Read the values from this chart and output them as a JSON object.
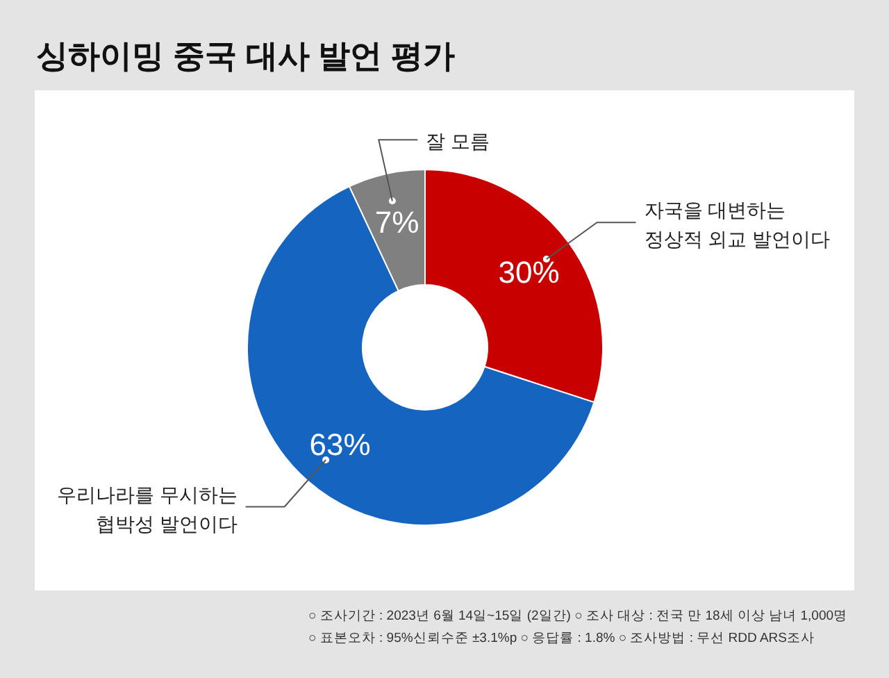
{
  "chart_data": {
    "type": "donut",
    "title": "싱하이밍 중국 대사 발언 평가",
    "categories": [
      "자국을 대변하는\n정상적 외교 발언이다",
      "우리나라를 무시하는\n협박성 발언이다",
      "잘 모름"
    ],
    "values": [
      30,
      63,
      7
    ],
    "colors": [
      "#c80000",
      "#1565c0",
      "#808080"
    ],
    "value_labels": [
      "30%",
      "63%",
      "7%"
    ],
    "annotations": [
      "○ 조사기간 : 2023년 6월 14일~15일 (2일간) ○ 조사 대상 : 전국 만 18세 이상 남녀 1,000명",
      "○ 표본오차 : 95%신뢰수준 ±3.1%p ○ 응답률 : 1.8% ○ 조사방법 : 무선 RDD ARS조사"
    ]
  }
}
